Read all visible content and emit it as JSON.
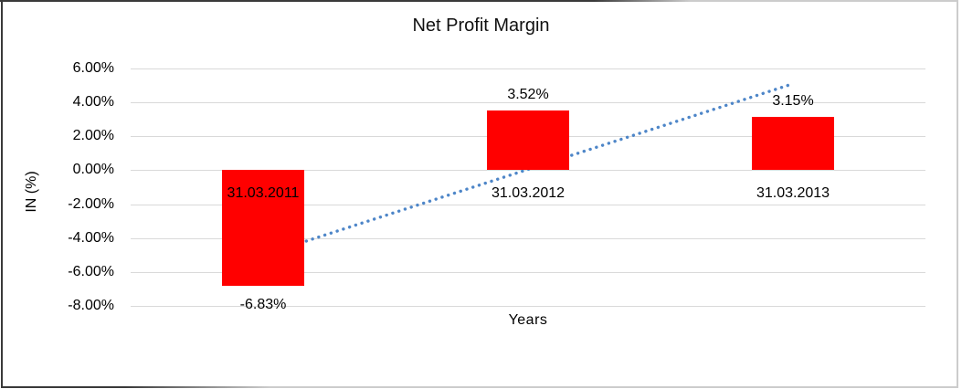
{
  "frame": {
    "border_dark": "#3a3a3a",
    "border_light": "#cccccc",
    "background": "#ffffff"
  },
  "chart_data": {
    "type": "bar",
    "title": "Net Profit Margin",
    "xlabel": "Years",
    "ylabel": "IN (%)",
    "categories": [
      "31.03.2011",
      "31.03.2012",
      "31.03.2013"
    ],
    "values": [
      -6.83,
      3.52,
      3.15
    ],
    "data_labels": [
      "-6.83%",
      "3.52%",
      "3.15%"
    ],
    "ylim": [
      -8,
      6
    ],
    "yticks": [
      {
        "value": 6,
        "label": "6.00%"
      },
      {
        "value": 4,
        "label": "4.00%"
      },
      {
        "value": 2,
        "label": "2.00%"
      },
      {
        "value": 0,
        "label": "0.00%"
      },
      {
        "value": -2,
        "label": "-2.00%"
      },
      {
        "value": -4,
        "label": "-4.00%"
      },
      {
        "value": -6,
        "label": "-6.00%"
      },
      {
        "value": -8,
        "label": "-8.00%"
      }
    ],
    "grid": true,
    "gridline_color": "#d9d9d9",
    "bar_color": "#ff0000",
    "legend_position": "none",
    "trendline": {
      "type": "linear",
      "style": "dotted",
      "color": "#4e86c8",
      "start": {
        "category_index": 0,
        "value": -5.0
      },
      "end": {
        "category_index": 2,
        "value": 5.1
      }
    }
  }
}
